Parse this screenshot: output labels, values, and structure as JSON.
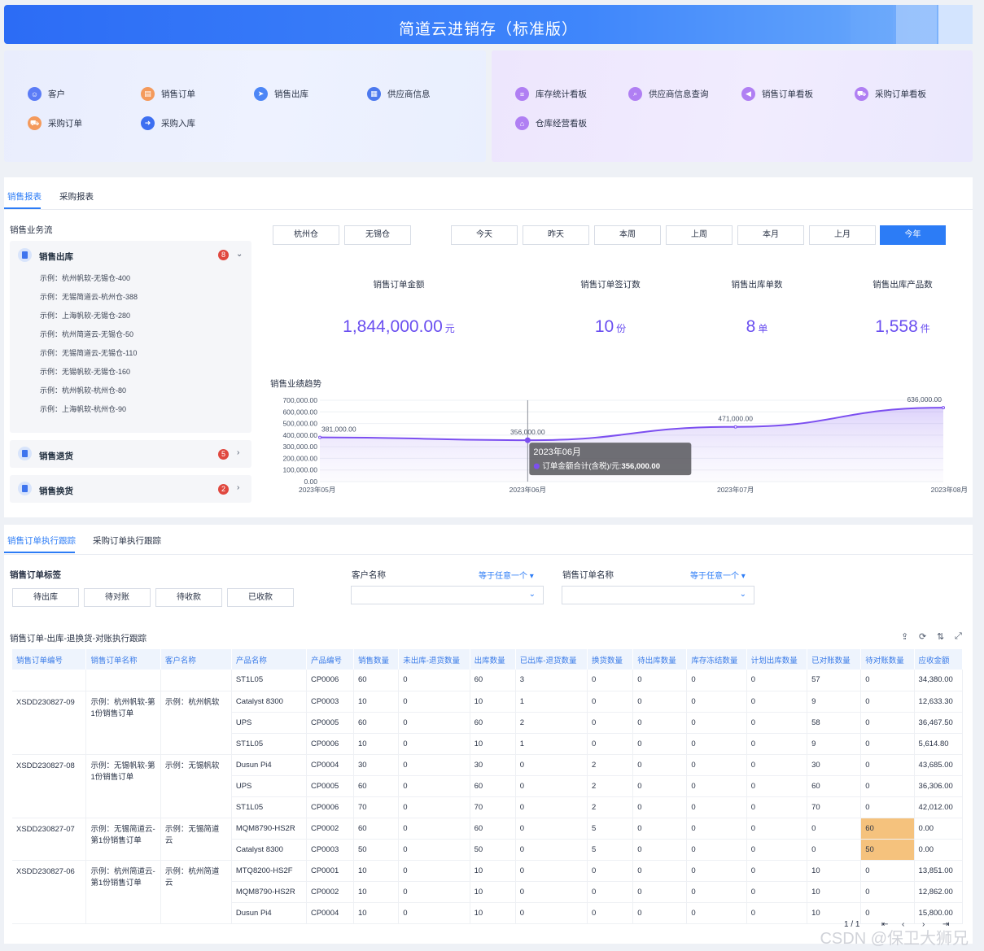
{
  "app": {
    "title": "简道云进销存（标准版）"
  },
  "shortcuts_left": [
    {
      "label": "客户",
      "icon": "customer-icon",
      "color": "#5b7cf6"
    },
    {
      "label": "销售订单",
      "icon": "sales-order-icon",
      "color": "#f49a5c"
    },
    {
      "label": "销售出库",
      "icon": "sales-outbound-icon",
      "color": "#4c86f6"
    },
    {
      "label": "供应商信息",
      "icon": "supplier-icon",
      "color": "#4c79ee"
    },
    {
      "label": "采购订单",
      "icon": "purchase-order-icon",
      "color": "#f49a5c"
    },
    {
      "label": "采购入库",
      "icon": "purchase-inbound-icon",
      "color": "#3d6ff1"
    }
  ],
  "shortcuts_right": [
    {
      "label": "库存统计看板",
      "icon": "inventory-board-icon",
      "color": "#b07ff3"
    },
    {
      "label": "供应商信息查询",
      "icon": "supplier-query-icon",
      "color": "#b07ff3"
    },
    {
      "label": "销售订单看板",
      "icon": "sales-board-icon",
      "color": "#b07ff3"
    },
    {
      "label": "采购订单看板",
      "icon": "purchase-board-icon",
      "color": "#b07ff3"
    },
    {
      "label": "仓库经营看板",
      "icon": "warehouse-board-icon",
      "color": "#b07ff3"
    }
  ],
  "report_tabs": [
    "销售报表",
    "采购报表"
  ],
  "flow": {
    "title": "销售业务流",
    "groups": [
      {
        "title": "销售出库",
        "count": "8",
        "expanded": true,
        "items": [
          "示例：杭州帆软-无锡仓-400",
          "示例：无锡简道云-杭州仓-388",
          "示例：上海帆软-无锡仓-280",
          "示例：杭州简道云-无锡仓-50",
          "示例：无锡简道云-无锡仓-110",
          "示例：无锡帆软-无锡仓-160",
          "示例：杭州帆软-杭州仓-80",
          "示例：上海帆软-杭州仓-90"
        ]
      },
      {
        "title": "销售退货",
        "count": "5",
        "expanded": false,
        "items": []
      },
      {
        "title": "销售换货",
        "count": "2",
        "expanded": false,
        "items": []
      }
    ]
  },
  "warehouse_filters": [
    "杭州仓",
    "无锡仓"
  ],
  "period_filters": [
    "今天",
    "昨天",
    "本周",
    "上周",
    "本月",
    "上月",
    "今年"
  ],
  "period_selected": "今年",
  "kpis": [
    {
      "label": "销售订单金额",
      "value": "1,844,000.00",
      "unit": "元"
    },
    {
      "label": "销售订单签订数",
      "value": "10",
      "unit": "份"
    },
    {
      "label": "销售出库单数",
      "value": "8",
      "unit": "单"
    },
    {
      "label": "销售出库产品数",
      "value": "1,558",
      "unit": "件"
    }
  ],
  "trend": {
    "title": "销售业绩趋势",
    "tooltip_title": "2023年06月",
    "tooltip_text": "订单金额合计(含税)/元:",
    "tooltip_value": "356,000.00"
  },
  "chart_data": {
    "type": "area",
    "categories": [
      "2023年05月",
      "2023年06月",
      "2023年07月",
      "2023年08月"
    ],
    "series": [
      {
        "name": "订单金额合计(含税)/元",
        "values": [
          381000,
          356000,
          471000,
          636000
        ]
      }
    ],
    "data_labels": [
      "381,000.00",
      "356,000.00",
      "471,000.00",
      "636,000.00"
    ],
    "y_ticks": [
      "0.00",
      "100,000.00",
      "200,000.00",
      "300,000.00",
      "400,000.00",
      "500,000.00",
      "600,000.00",
      "700,000.00"
    ],
    "ylim": [
      0,
      700000
    ],
    "color": "#7c4ff0"
  },
  "track_tabs": [
    "销售订单执行跟踪",
    "采购订单执行跟踪"
  ],
  "filters": {
    "tag_label": "销售订单标签",
    "tags": [
      "待出库",
      "待对账",
      "待收款",
      "已收款"
    ],
    "customer_label": "客户名称",
    "customer_op": "等于任意一个",
    "order_label": "销售订单名称",
    "order_op": "等于任意一个"
  },
  "table": {
    "title": "销售订单-出库-退换货-对账执行跟踪",
    "columns": [
      "销售订单编号",
      "销售订单名称",
      "客户名称",
      "产品名称",
      "产品编号",
      "销售数量",
      "未出库-退货数量",
      "出库数量",
      "已出库-退货数量",
      "换货数量",
      "待出库数量",
      "库存冻结数量",
      "计划出库数量",
      "已对账数量",
      "待对账数量",
      "应收金额"
    ],
    "rows": [
      [
        "",
        "",
        "",
        "ST1L05",
        "CP0006",
        "60",
        "0",
        "60",
        "3",
        "0",
        "0",
        "0",
        "0",
        "57",
        "0",
        "34,380.00"
      ],
      [
        "XSDD230827-09",
        "示例：杭州帆软-第1份销售订单",
        "示例：杭州帆软",
        "Catalyst 8300",
        "CP0003",
        "10",
        "0",
        "10",
        "1",
        "0",
        "0",
        "0",
        "0",
        "9",
        "0",
        "12,633.30"
      ],
      [
        "",
        "",
        "",
        "UPS",
        "CP0005",
        "60",
        "0",
        "60",
        "2",
        "0",
        "0",
        "0",
        "0",
        "58",
        "0",
        "36,467.50"
      ],
      [
        "",
        "",
        "",
        "ST1L05",
        "CP0006",
        "10",
        "0",
        "10",
        "1",
        "0",
        "0",
        "0",
        "0",
        "9",
        "0",
        "5,614.80"
      ],
      [
        "XSDD230827-08",
        "示例：无锡帆软-第1份销售订单",
        "示例：无锡帆软",
        "Dusun Pi4",
        "CP0004",
        "30",
        "0",
        "30",
        "0",
        "2",
        "0",
        "0",
        "0",
        "30",
        "0",
        "43,685.00"
      ],
      [
        "",
        "",
        "",
        "UPS",
        "CP0005",
        "60",
        "0",
        "60",
        "0",
        "2",
        "0",
        "0",
        "0",
        "60",
        "0",
        "36,306.00"
      ],
      [
        "",
        "",
        "",
        "ST1L05",
        "CP0006",
        "70",
        "0",
        "70",
        "0",
        "2",
        "0",
        "0",
        "0",
        "70",
        "0",
        "42,012.00"
      ],
      [
        "XSDD230827-07",
        "示例：无锡简道云-第1份销售订单",
        "示例：无锡简道云",
        "MQM8790-HS2R",
        "CP0002",
        "60",
        "0",
        "60",
        "0",
        "5",
        "0",
        "0",
        "0",
        "0",
        "60",
        "0.00"
      ],
      [
        "",
        "",
        "",
        "Catalyst 8300",
        "CP0003",
        "50",
        "0",
        "50",
        "0",
        "5",
        "0",
        "0",
        "0",
        "0",
        "50",
        "0.00"
      ],
      [
        "XSDD230827-06",
        "示例：杭州简道云-第1份销售订单",
        "示例：杭州简道云",
        "MTQ8200-HS2F",
        "CP0001",
        "10",
        "0",
        "10",
        "0",
        "0",
        "0",
        "0",
        "0",
        "10",
        "0",
        "13,851.00"
      ],
      [
        "",
        "",
        "",
        "MQM8790-HS2R",
        "CP0002",
        "10",
        "0",
        "10",
        "0",
        "0",
        "0",
        "0",
        "0",
        "10",
        "0",
        "12,862.00"
      ],
      [
        "",
        "",
        "",
        "Dusun Pi4",
        "CP0004",
        "10",
        "0",
        "10",
        "0",
        "0",
        "0",
        "0",
        "0",
        "10",
        "0",
        "15,800.00"
      ]
    ],
    "highlight_cells": [
      [
        7,
        14
      ],
      [
        8,
        14
      ]
    ]
  },
  "pager": {
    "text": "1 / 1"
  },
  "watermark": "CSDN @保卫大狮兄"
}
